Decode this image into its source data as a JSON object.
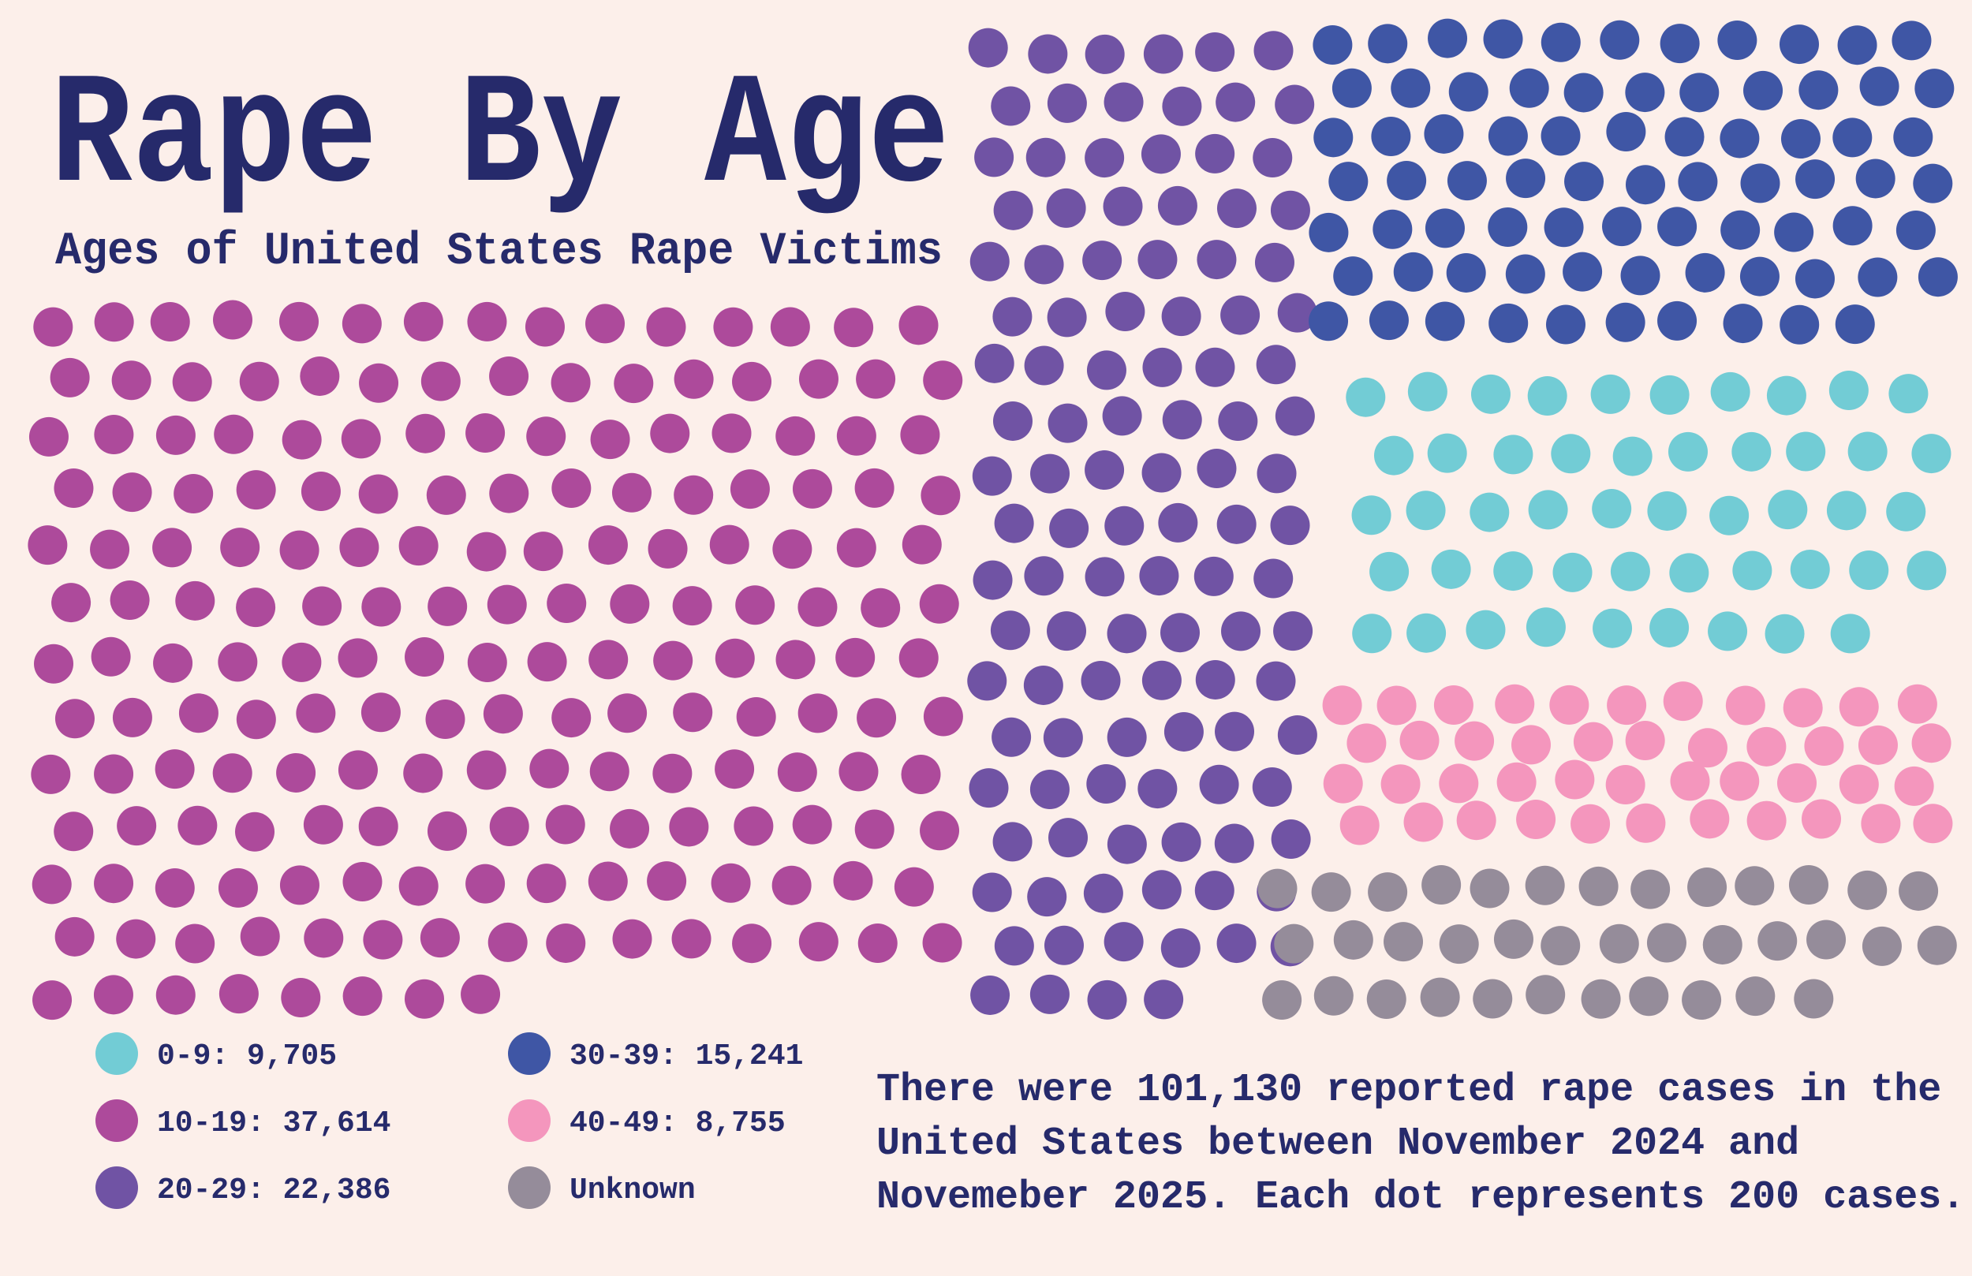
{
  "chart_data": {
    "type": "dot",
    "title": "Rape By Age",
    "subtitle": "Ages of United States Rape Victims",
    "dot_value": 200,
    "series": [
      {
        "name": "0-9: 9,705",
        "color": "#72ccd5",
        "value": 9705
      },
      {
        "name": "10-19: 37,614",
        "color": "#ad4a9b",
        "value": 37614
      },
      {
        "name": "20-29: 22,386",
        "color": "#7053a4",
        "value": 22386
      },
      {
        "name": "30-39: 15,241",
        "color": "#3f56a5",
        "value": 15241
      },
      {
        "name": "40-49: 8,755",
        "color": "#f496bd",
        "value": 8755
      },
      {
        "name": "Unknown",
        "color": "#958c9a",
        "value": 7429
      }
    ],
    "note": [
      "There were 101,130 reported rape cases in the",
      "United States between November 2024 and",
      "Novemeber 2025. Each dot represents 200 cases."
    ]
  }
}
